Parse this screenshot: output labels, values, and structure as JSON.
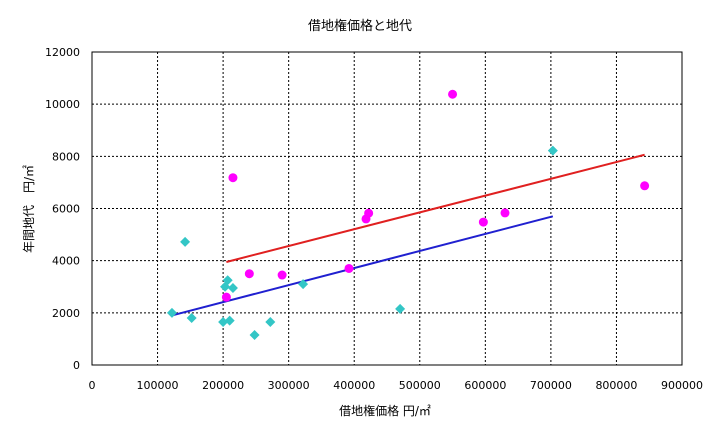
{
  "chart_data": {
    "type": "scatter",
    "title": "借地権価格と地代",
    "xlabel": "借地権価格 円/㎡",
    "ylabel": "年間地代　円/㎡",
    "xlim": [
      0,
      900000
    ],
    "ylim": [
      0,
      12000
    ],
    "x_ticks": [
      "0",
      "100000",
      "200000",
      "300000",
      "400000",
      "500000",
      "600000",
      "700000",
      "800000",
      "900000"
    ],
    "y_ticks": [
      "0",
      "2000",
      "4000",
      "6000",
      "8000",
      "10000",
      "12000"
    ],
    "grid": true,
    "series": [
      {
        "marker": "diamond",
        "color": "#33c6c6",
        "points": [
          [
            122000,
            2000
          ],
          [
            142000,
            4720
          ],
          [
            152000,
            1800
          ],
          [
            200000,
            1650
          ],
          [
            203000,
            3000
          ],
          [
            207000,
            3250
          ],
          [
            210000,
            1700
          ],
          [
            215000,
            2950
          ],
          [
            248000,
            1150
          ],
          [
            272000,
            1650
          ],
          [
            322000,
            3100
          ],
          [
            470000,
            2150
          ],
          [
            703000,
            8220
          ]
        ]
      },
      {
        "marker": "circle",
        "color": "#ff00ff",
        "points": [
          [
            205000,
            2600
          ],
          [
            215000,
            7180
          ],
          [
            240000,
            3500
          ],
          [
            290000,
            3450
          ],
          [
            392000,
            3700
          ],
          [
            418000,
            5600
          ],
          [
            422000,
            5820
          ],
          [
            550000,
            10380
          ],
          [
            597000,
            5480
          ],
          [
            630000,
            5830
          ],
          [
            843000,
            6870
          ]
        ]
      }
    ],
    "trendlines": [
      {
        "color": "#2020d0",
        "from": [
          122000,
          1900
        ],
        "to": [
          703000,
          5700
        ]
      },
      {
        "color": "#e02020",
        "from": [
          205000,
          3950
        ],
        "to": [
          843000,
          8060
        ]
      }
    ]
  }
}
